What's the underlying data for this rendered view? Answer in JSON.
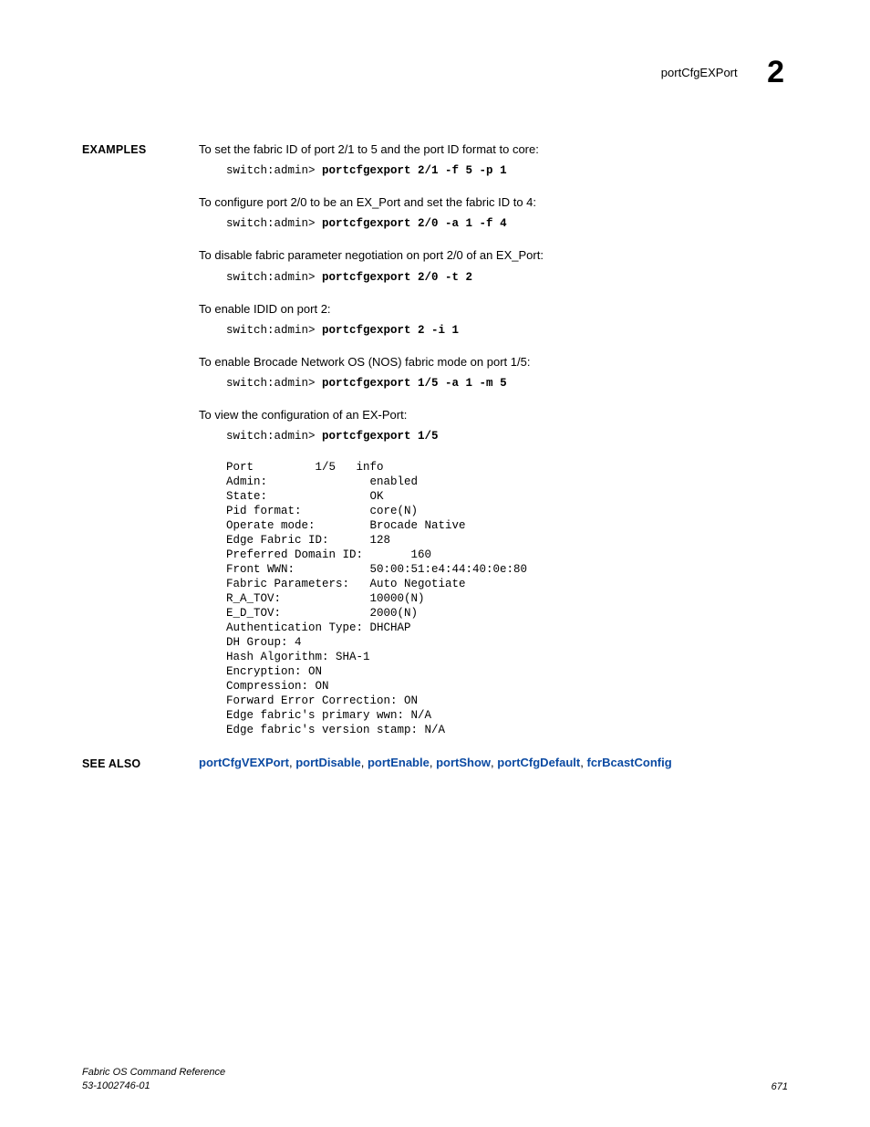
{
  "header": {
    "title": "portCfgEXPort",
    "chapter": "2"
  },
  "examples_label": "EXAMPLES",
  "seealso_label": "SEE ALSO",
  "examples": [
    {
      "desc": "To set the fabric ID of port 2/1 to 5 and the port ID format to core:",
      "prompt": "switch:admin> ",
      "cmd": "portcfgexport 2/1 -f 5 -p 1"
    },
    {
      "desc": "To configure port 2/0 to be an EX_Port and set the fabric ID to 4:",
      "prompt": "switch:admin> ",
      "cmd": "portcfgexport 2/0 -a 1 -f 4"
    },
    {
      "desc": "To disable fabric parameter negotiation on port 2/0 of an EX_Port:",
      "prompt": "switch:admin> ",
      "cmd": "portcfgexport 2/0 -t 2"
    },
    {
      "desc": "To enable IDID on port 2:",
      "prompt": "switch:admin> ",
      "cmd": "portcfgexport 2 -i 1"
    },
    {
      "desc": "To enable Brocade Network OS (NOS) fabric mode on port 1/5:",
      "prompt": "switch:admin> ",
      "cmd": "portcfgexport 1/5 -a 1 -m 5"
    },
    {
      "desc": "To view the configuration of an EX-Port:",
      "prompt": "switch:admin> ",
      "cmd": "portcfgexport 1/5"
    }
  ],
  "output": "Port         1/5   info\nAdmin:               enabled\nState:               OK\nPid format:          core(N)\nOperate mode:        Brocade Native\nEdge Fabric ID:      128\nPreferred Domain ID:       160\nFront WWN:           50:00:51:e4:44:40:0e:80\nFabric Parameters:   Auto Negotiate\nR_A_TOV:             10000(N)\nE_D_TOV:             2000(N)\nAuthentication Type: DHCHAP\nDH Group: 4\nHash Algorithm: SHA-1\nEncryption: ON\nCompression: ON\nForward Error Correction: ON\nEdge fabric's primary wwn: N/A\nEdge fabric's version stamp: N/A",
  "seealso": [
    "portCfgVEXPort",
    "portDisable",
    "portEnable",
    "portShow",
    "portCfgDefault",
    "fcrBcastConfig"
  ],
  "footer": {
    "line1": "Fabric OS Command Reference",
    "line2": "53-1002746-01",
    "page": "671"
  }
}
